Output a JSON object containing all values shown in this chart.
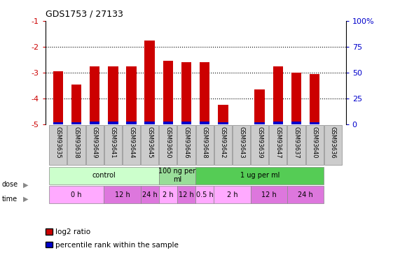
{
  "title": "GDS1753 / 27133",
  "samples": [
    "GSM93635",
    "GSM93638",
    "GSM93649",
    "GSM93641",
    "GSM93644",
    "GSM93645",
    "GSM93650",
    "GSM93646",
    "GSM93648",
    "GSM93642",
    "GSM93643",
    "GSM93639",
    "GSM93647",
    "GSM93637",
    "GSM93640",
    "GSM93636"
  ],
  "log2_ratio": [
    -2.95,
    -3.45,
    -2.75,
    -2.75,
    -2.75,
    -1.75,
    -2.55,
    -2.6,
    -2.6,
    -4.25,
    0,
    -3.65,
    -2.75,
    -3.0,
    -3.05,
    0
  ],
  "pct_height": [
    0.08,
    0.08,
    0.12,
    0.1,
    0.1,
    0.1,
    0.1,
    0.1,
    0.1,
    0.08,
    0,
    0.08,
    0.1,
    0.1,
    0.08,
    0
  ],
  "bar_color": "#cc0000",
  "pct_color": "#0000cc",
  "ylim_left": [
    -5,
    -1
  ],
  "ylim_right": [
    0,
    100
  ],
  "yticks_left": [
    -5,
    -4,
    -3,
    -2,
    -1
  ],
  "ytick_labels_left": [
    "-5",
    "-4",
    "-3",
    "-2",
    "-1"
  ],
  "yticks_right": [
    0,
    25,
    50,
    75,
    100
  ],
  "ytick_labels_right": [
    "0",
    "25",
    "50",
    "75",
    "100%"
  ],
  "dose_groups": [
    {
      "label": "control",
      "start": 0,
      "end": 6,
      "color": "#ccffcc"
    },
    {
      "label": "100 ng per\nml",
      "start": 6,
      "end": 8,
      "color": "#99dd99"
    },
    {
      "label": "1 ug per ml",
      "start": 8,
      "end": 15,
      "color": "#55cc55"
    }
  ],
  "time_groups": [
    {
      "label": "0 h",
      "start": 0,
      "end": 3,
      "color": "#ffaaff"
    },
    {
      "label": "12 h",
      "start": 3,
      "end": 5,
      "color": "#dd77dd"
    },
    {
      "label": "24 h",
      "start": 5,
      "end": 6,
      "color": "#dd77dd"
    },
    {
      "label": "2 h",
      "start": 6,
      "end": 7,
      "color": "#ffaaff"
    },
    {
      "label": "12 h",
      "start": 7,
      "end": 8,
      "color": "#dd77dd"
    },
    {
      "label": "0.5 h",
      "start": 8,
      "end": 9,
      "color": "#ffaaff"
    },
    {
      "label": "2 h",
      "start": 9,
      "end": 11,
      "color": "#ffaaff"
    },
    {
      "label": "12 h",
      "start": 11,
      "end": 13,
      "color": "#dd77dd"
    },
    {
      "label": "24 h",
      "start": 13,
      "end": 15,
      "color": "#dd77dd"
    }
  ],
  "legend_items": [
    {
      "color": "#cc0000",
      "label": "log2 ratio"
    },
    {
      "color": "#0000cc",
      "label": "percentile rank within the sample"
    }
  ],
  "bar_color_left": "#cc0000",
  "tick_color_left": "#cc0000",
  "tick_color_right": "#0000cc",
  "bar_width": 0.55,
  "sample_box_color": "#cccccc",
  "sample_box_edge": "#888888"
}
